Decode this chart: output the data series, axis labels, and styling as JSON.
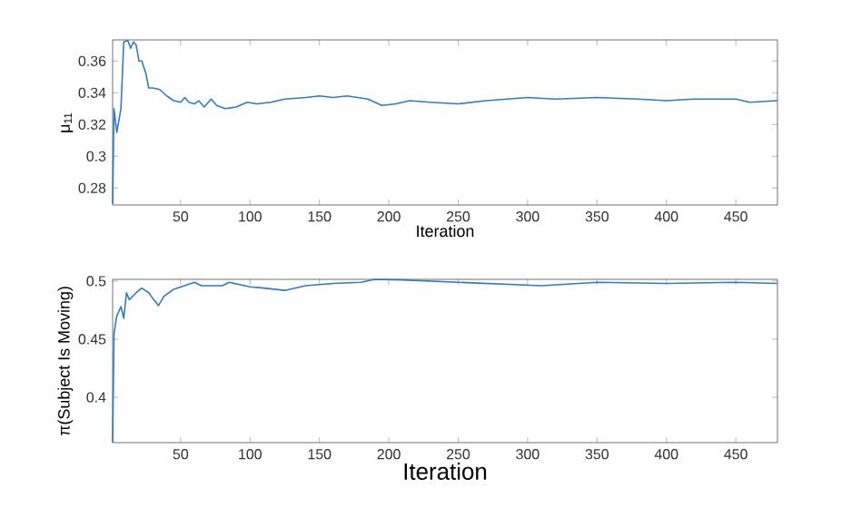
{
  "chart_data": [
    {
      "type": "line",
      "xlabel": "Iteration",
      "ylabel": "μ$_{11}$",
      "xlim": [
        1,
        480
      ],
      "ylim": [
        0.2693,
        0.3733
      ],
      "xticks": [
        50,
        100,
        150,
        200,
        250,
        300,
        350,
        400,
        450
      ],
      "yticks": [
        0.28,
        {
          "value": 0.3,
          "label": "0.3"
        },
        0.32,
        0.34,
        0.36
      ],
      "series": [
        {
          "color": "#2f7bc4",
          "x": [
            1,
            2,
            4,
            5,
            7,
            9,
            12,
            14,
            16,
            18,
            20,
            22,
            25,
            27,
            30,
            35,
            40,
            45,
            50,
            53,
            56,
            60,
            63,
            67,
            72,
            76,
            82,
            90,
            98,
            105,
            115,
            125,
            140,
            150,
            160,
            170,
            185,
            195,
            205,
            215,
            230,
            250,
            270,
            300,
            320,
            350,
            380,
            400,
            420,
            450,
            460,
            480
          ],
          "values": [
            0.27,
            0.33,
            0.315,
            0.32,
            0.33,
            0.372,
            0.373,
            0.368,
            0.372,
            0.37,
            0.36,
            0.36,
            0.352,
            0.343,
            0.343,
            0.342,
            0.338,
            0.335,
            0.334,
            0.337,
            0.334,
            0.333,
            0.335,
            0.331,
            0.336,
            0.332,
            0.33,
            0.331,
            0.334,
            0.333,
            0.334,
            0.336,
            0.337,
            0.338,
            0.337,
            0.338,
            0.336,
            0.332,
            0.333,
            0.335,
            0.334,
            0.333,
            0.335,
            0.337,
            0.336,
            0.337,
            0.336,
            0.335,
            0.336,
            0.336,
            0.334,
            0.335
          ]
        }
      ]
    },
    {
      "type": "line",
      "xlabel": "Iteration",
      "ylabel": "π(Subject Is Moving)",
      "xlim": [
        1,
        480
      ],
      "ylim": [
        0.361,
        0.5015
      ],
      "xticks": [
        50,
        100,
        150,
        200,
        250,
        300,
        350,
        400,
        450
      ],
      "yticks": [
        0.4,
        0.45,
        0.5
      ],
      "series": [
        {
          "color": "#2f7bc4",
          "x": [
            1,
            2,
            4,
            7,
            9,
            11,
            13,
            18,
            22,
            27,
            30,
            34,
            38,
            45,
            55,
            60,
            65,
            80,
            85,
            100,
            110,
            125,
            140,
            160,
            180,
            190,
            210,
            250,
            290,
            310,
            350,
            400,
            450,
            480
          ],
          "values": [
            0.361,
            0.455,
            0.47,
            0.478,
            0.468,
            0.49,
            0.484,
            0.49,
            0.494,
            0.49,
            0.485,
            0.479,
            0.487,
            0.493,
            0.497,
            0.499,
            0.496,
            0.496,
            0.499,
            0.495,
            0.494,
            0.492,
            0.496,
            0.498,
            0.499,
            0.5015,
            0.501,
            0.499,
            0.497,
            0.496,
            0.499,
            0.498,
            0.499,
            0.498
          ]
        }
      ]
    }
  ]
}
